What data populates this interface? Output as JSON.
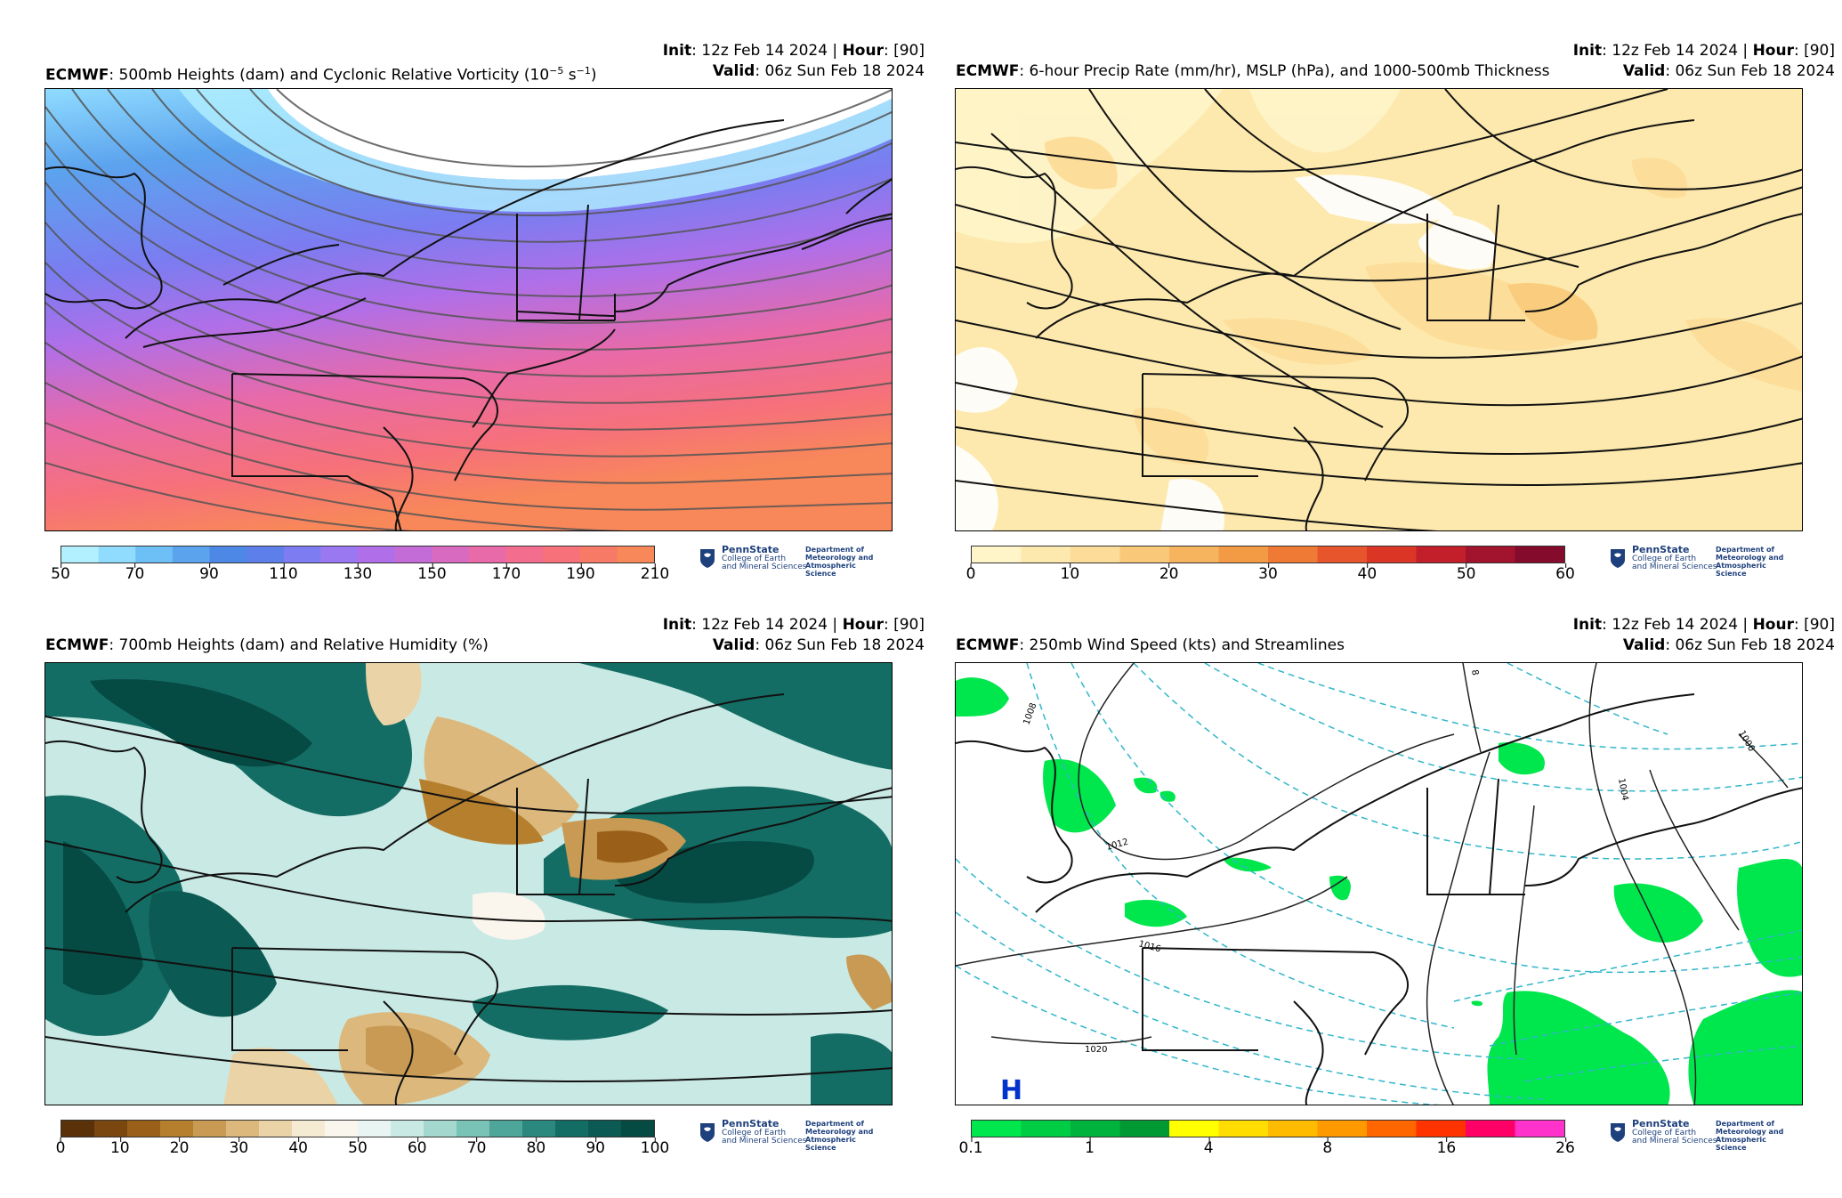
{
  "common": {
    "init_label": "Init",
    "init_value": ": 12z Feb 14 2024 | ",
    "hour_label": "Hour",
    "hour_value": ": [90]",
    "valid_label": "Valid",
    "valid_value": ": 06z Sun Feb 18 2024",
    "model": "ECMWF",
    "logo_name": "PennState",
    "logo_sub1": "College of Earth",
    "logo_sub2": "and Mineral Sciences",
    "dept1": "Department of",
    "dept2": "Meteorology and",
    "dept3": "Atmospheric Science"
  },
  "panels": {
    "vort": {
      "title": ": 500mb Heights (dam) and Cyclonic Relative Vorticity (10",
      "title_exp": "−5",
      "title_unit": " s",
      "title_unit_exp": "−1",
      "title_end": ")",
      "colorbar_ticks": [
        "50",
        "70",
        "90",
        "110",
        "130",
        "150",
        "170",
        "190",
        "210"
      ],
      "colors": [
        "#b3f0ff",
        "#8fdcff",
        "#6dc0f5",
        "#5ca3ee",
        "#4d88e6",
        "#5c7fea",
        "#7d7cf0",
        "#9a78f2",
        "#b06fe8",
        "#c36cd8",
        "#d86bc0",
        "#e86aa8",
        "#f36d8f",
        "#f6717a",
        "#f77a66",
        "#f8875a"
      ]
    },
    "precip": {
      "title": ": 6-hour Precip Rate (mm/hr), MSLP (hPa), and 1000-500mb Thickness",
      "colorbar_ticks": [
        "0",
        "10",
        "20",
        "30",
        "40",
        "50",
        "60"
      ],
      "colors": [
        "#fff5c9",
        "#fde9ad",
        "#fcdc98",
        "#f9c979",
        "#f6b45f",
        "#f39a44",
        "#ee7a35",
        "#e6552b",
        "#db3526",
        "#c31f2a",
        "#a2132d",
        "#850b2d"
      ]
    },
    "rh": {
      "title": ": 700mb Heights (dam) and Relative Humidity (%)",
      "colorbar_ticks": [
        "0",
        "10",
        "20",
        "30",
        "40",
        "50",
        "60",
        "70",
        "80",
        "90",
        "100"
      ],
      "colors": [
        "#5a3109",
        "#7a4710",
        "#9a6019",
        "#b57f2e",
        "#c99a53",
        "#dcb87c",
        "#ead3a6",
        "#f5ead2",
        "#fbf6ed",
        "#e9f5f3",
        "#c9e9e4",
        "#a4d8cf",
        "#78c2b6",
        "#4ea69a",
        "#2b887e",
        "#146d64",
        "#0b5a53",
        "#064a44"
      ]
    },
    "wind": {
      "title": ": 250mb Wind Speed (kts) and Streamlines",
      "colorbar_ticks": [
        "0.1",
        "1",
        "4",
        "8",
        "16",
        "26"
      ],
      "colors": [
        "#00e64d",
        "#00cc44",
        "#00b33c",
        "#009933",
        "#ffff00",
        "#ffdd00",
        "#ffbb00",
        "#ff9900",
        "#ff6600",
        "#ff3300",
        "#ff0066",
        "#ff33cc"
      ],
      "isobar_labels": [
        "1008",
        "1012",
        "1016",
        "1020",
        "1004",
        "1000",
        "8"
      ],
      "high_label": "H"
    }
  }
}
